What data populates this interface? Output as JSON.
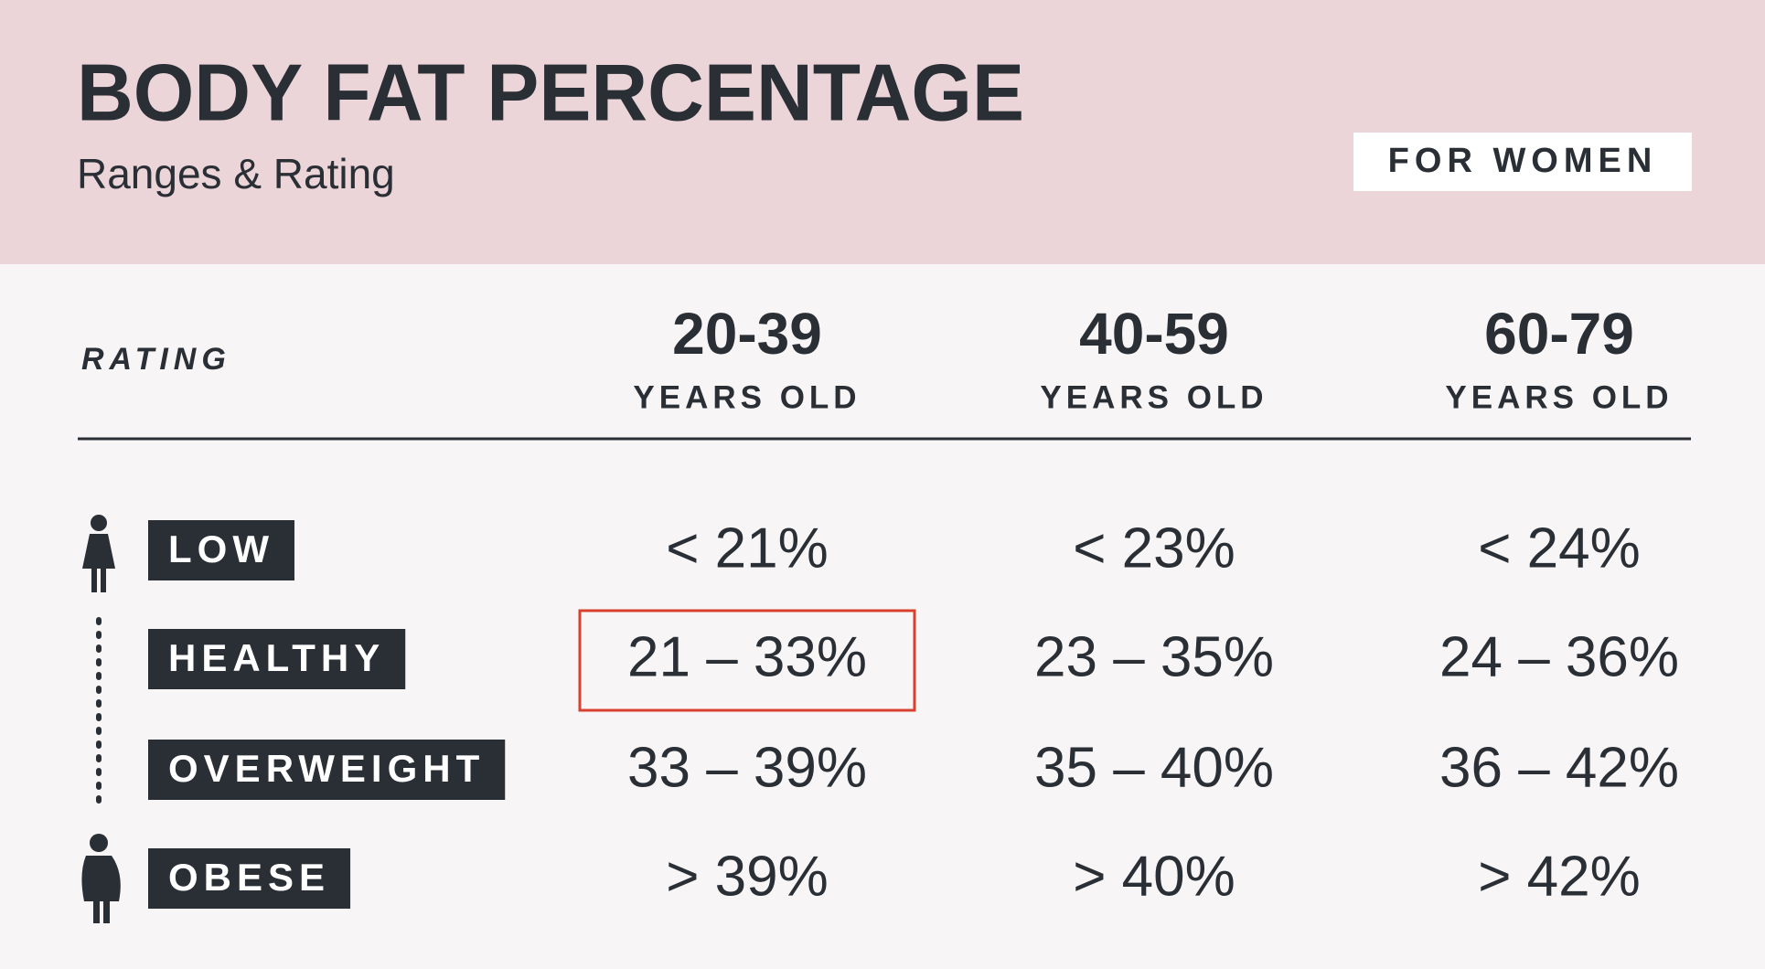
{
  "header": {
    "title": "BODY FAT PERCENTAGE",
    "subtitle": "Ranges & Rating",
    "badge": "FOR WOMEN"
  },
  "table": {
    "rating_label": "RATING",
    "columns": [
      {
        "range": "20-39",
        "label": "YEARS OLD"
      },
      {
        "range": "40-59",
        "label": "YEARS OLD"
      },
      {
        "range": "60-79",
        "label": "YEARS OLD"
      }
    ],
    "rows": [
      {
        "rating": "LOW",
        "cells": [
          "< 21%",
          "< 23%",
          "< 24%"
        ]
      },
      {
        "rating": "HEALTHY",
        "cells": [
          "21 – 33%",
          "23 – 35%",
          "24 – 36%"
        ]
      },
      {
        "rating": "OVERWEIGHT",
        "cells": [
          "33 – 39%",
          "35 – 40%",
          "36 – 42%"
        ]
      },
      {
        "rating": "OBESE",
        "cells": [
          "> 39%",
          "> 40%",
          "> 42%"
        ]
      }
    ]
  }
}
